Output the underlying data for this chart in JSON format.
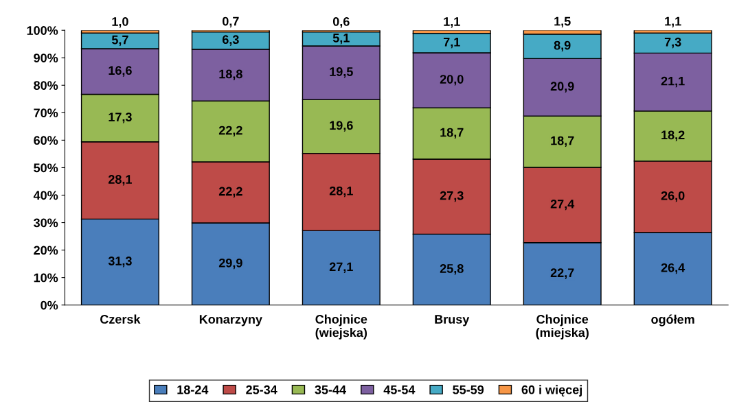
{
  "chart_data": {
    "type": "bar",
    "stacked": true,
    "categories": [
      "Czersk",
      "Konarzyny",
      "Chojnice\n(wiejska)",
      "Brusy",
      "Chojnice\n(miejska)",
      "ogółem"
    ],
    "series": [
      {
        "name": "18-24",
        "color": "#4a7ebb",
        "values": [
          31.3,
          29.9,
          27.1,
          25.8,
          22.7,
          26.4
        ],
        "value_labels": [
          "31,3",
          "29,9",
          "27,1",
          "25,8",
          "22,7",
          "26,4"
        ]
      },
      {
        "name": "25-34",
        "color": "#be4b48",
        "values": [
          28.1,
          22.2,
          28.1,
          27.3,
          27.4,
          26.0
        ],
        "value_labels": [
          "28,1",
          "22,2",
          "28,1",
          "27,3",
          "27,4",
          "26,0"
        ]
      },
      {
        "name": "35-44",
        "color": "#98b954",
        "values": [
          17.3,
          22.2,
          19.6,
          18.7,
          18.7,
          18.2
        ],
        "value_labels": [
          "17,3",
          "22,2",
          "19,6",
          "18,7",
          "18,7",
          "18,2"
        ]
      },
      {
        "name": "45-54",
        "color": "#7d60a0",
        "values": [
          16.6,
          18.8,
          19.5,
          20.0,
          20.9,
          21.1
        ],
        "value_labels": [
          "16,6",
          "18,8",
          "19,5",
          "20,0",
          "20,9",
          "21,1"
        ]
      },
      {
        "name": "55-59",
        "color": "#46aac5",
        "values": [
          5.7,
          6.3,
          5.1,
          7.1,
          8.9,
          7.3
        ],
        "value_labels": [
          "5,7",
          "6,3",
          "5,1",
          "7,1",
          "8,9",
          "7,3"
        ]
      },
      {
        "name": "60 i więcej",
        "color": "#f79646",
        "values": [
          1.0,
          0.7,
          0.6,
          1.1,
          1.5,
          1.1
        ],
        "value_labels": [
          "1,0",
          "0,7",
          "0,6",
          "1,1",
          "1,5",
          "1,1"
        ]
      }
    ],
    "ylim": [
      0,
      100
    ],
    "yticks": [
      {
        "value": 0,
        "label": "0%"
      },
      {
        "value": 10,
        "label": "10%"
      },
      {
        "value": 20,
        "label": "20%"
      },
      {
        "value": 30,
        "label": "30%"
      },
      {
        "value": 40,
        "label": "40%"
      },
      {
        "value": 50,
        "label": "50%"
      },
      {
        "value": 60,
        "label": "60%"
      },
      {
        "value": 70,
        "label": "70%"
      },
      {
        "value": 80,
        "label": "80%"
      },
      {
        "value": 90,
        "label": "90%"
      },
      {
        "value": 100,
        "label": "100%"
      }
    ],
    "grid": false,
    "legend": "bottom"
  }
}
